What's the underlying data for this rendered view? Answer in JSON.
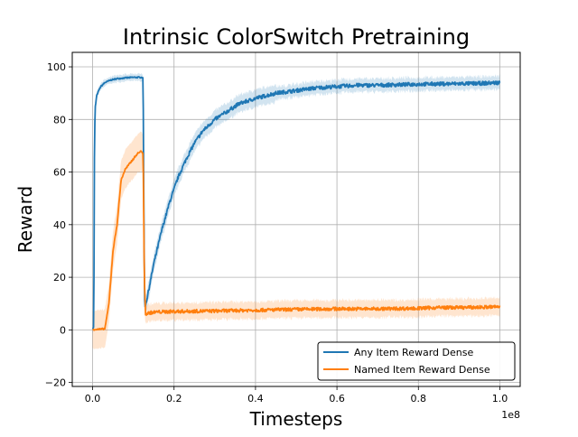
{
  "chart_data": {
    "type": "line",
    "title": "Intrinsic ColorSwitch Pretraining",
    "xlabel": "Timesteps",
    "ylabel": "Reward",
    "x_offset_label": "1e8",
    "xlim": [
      -0.05,
      1.05
    ],
    "ylim": [
      -21.5,
      105.5
    ],
    "xticks": [
      0.0,
      0.2,
      0.4,
      0.6,
      0.8,
      1.0
    ],
    "xtick_labels": [
      "0.0",
      "0.2",
      "0.4",
      "0.6",
      "0.8",
      "1.0"
    ],
    "yticks": [
      -20,
      0,
      20,
      40,
      60,
      80,
      100
    ],
    "ytick_labels": [
      "−20",
      "0",
      "20",
      "40",
      "60",
      "80",
      "100"
    ],
    "grid": true,
    "legend_position": "lower-right",
    "series": [
      {
        "name": "Any Item Reward Dense",
        "color": "#1f77b4",
        "points": [
          [
            0.0,
            0.5
          ],
          [
            0.003,
            1
          ],
          [
            0.004,
            60
          ],
          [
            0.006,
            84
          ],
          [
            0.01,
            89
          ],
          [
            0.015,
            91
          ],
          [
            0.02,
            92.5
          ],
          [
            0.03,
            94
          ],
          [
            0.045,
            95
          ],
          [
            0.06,
            95.5
          ],
          [
            0.08,
            95.8
          ],
          [
            0.1,
            96
          ],
          [
            0.12,
            96
          ],
          [
            0.124,
            96
          ],
          [
            0.126,
            40
          ],
          [
            0.128,
            8
          ],
          [
            0.135,
            13
          ],
          [
            0.15,
            25
          ],
          [
            0.17,
            38
          ],
          [
            0.19,
            49
          ],
          [
            0.21,
            58
          ],
          [
            0.23,
            65
          ],
          [
            0.25,
            71
          ],
          [
            0.27,
            75.5
          ],
          [
            0.3,
            80
          ],
          [
            0.33,
            83
          ],
          [
            0.36,
            86
          ],
          [
            0.4,
            88
          ],
          [
            0.45,
            90
          ],
          [
            0.5,
            91
          ],
          [
            0.55,
            92
          ],
          [
            0.6,
            92.5
          ],
          [
            0.65,
            93
          ],
          [
            0.7,
            93
          ],
          [
            0.75,
            93.2
          ],
          [
            0.8,
            93.4
          ],
          [
            0.85,
            93.5
          ],
          [
            0.9,
            93.6
          ],
          [
            0.95,
            93.7
          ],
          [
            1.0,
            94
          ]
        ]
      },
      {
        "name": "Named Item Reward Dense",
        "color": "#ff7f0e",
        "points": [
          [
            0.0,
            0.2
          ],
          [
            0.02,
            0.2
          ],
          [
            0.03,
            0.5
          ],
          [
            0.035,
            5
          ],
          [
            0.04,
            10
          ],
          [
            0.045,
            20
          ],
          [
            0.05,
            30
          ],
          [
            0.06,
            40
          ],
          [
            0.07,
            57
          ],
          [
            0.08,
            61
          ],
          [
            0.09,
            63
          ],
          [
            0.1,
            65
          ],
          [
            0.11,
            67
          ],
          [
            0.12,
            68
          ],
          [
            0.124,
            67
          ],
          [
            0.127,
            20
          ],
          [
            0.13,
            6
          ],
          [
            0.14,
            6.5
          ],
          [
            0.16,
            6.8
          ],
          [
            0.2,
            7
          ],
          [
            0.3,
            7.2
          ],
          [
            0.4,
            7.5
          ],
          [
            0.5,
            7.8
          ],
          [
            0.6,
            8
          ],
          [
            0.7,
            8
          ],
          [
            0.8,
            8.2
          ],
          [
            0.85,
            8.5
          ],
          [
            0.9,
            8.5
          ],
          [
            0.95,
            8.6
          ],
          [
            1.0,
            8.8
          ]
        ]
      }
    ]
  }
}
